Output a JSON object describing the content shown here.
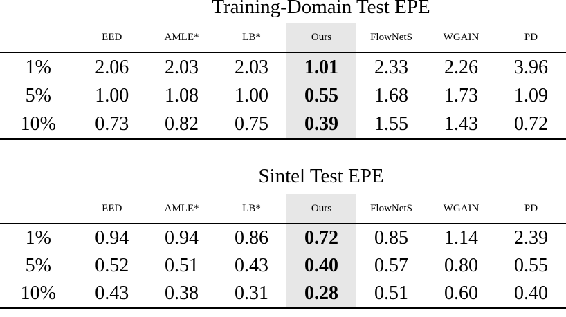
{
  "page": {
    "background": "#ffffff",
    "text_color": "#000000",
    "highlight_color": "#e7e7e7",
    "rule_color": "#000000"
  },
  "tables": [
    {
      "title": "Training-Domain Test EPE",
      "columns": [
        "EED",
        "AMLE*",
        "LB*",
        "Ours",
        "FlowNetS",
        "WGAIN",
        "PD"
      ],
      "highlighted_column": "Ours",
      "highlighted_column_index": 3,
      "row_label_unit": "%",
      "rows": [
        {
          "label": "1%",
          "values": [
            "2.06",
            "2.03",
            "2.03",
            "1.01",
            "2.33",
            "2.26",
            "3.96"
          ]
        },
        {
          "label": "5%",
          "values": [
            "1.00",
            "1.08",
            "1.00",
            "0.55",
            "1.68",
            "1.73",
            "1.09"
          ]
        },
        {
          "label": "10%",
          "values": [
            "0.73",
            "0.82",
            "0.75",
            "0.39",
            "1.55",
            "1.43",
            "0.72"
          ]
        }
      ]
    },
    {
      "title": "Sintel Test EPE",
      "columns": [
        "EED",
        "AMLE*",
        "LB*",
        "Ours",
        "FlowNetS",
        "WGAIN",
        "PD"
      ],
      "highlighted_column": "Ours",
      "highlighted_column_index": 3,
      "row_label_unit": "%",
      "rows": [
        {
          "label": "1%",
          "values": [
            "0.94",
            "0.94",
            "0.86",
            "0.72",
            "0.85",
            "1.14",
            "2.39"
          ]
        },
        {
          "label": "5%",
          "values": [
            "0.52",
            "0.51",
            "0.43",
            "0.40",
            "0.57",
            "0.80",
            "0.55"
          ]
        },
        {
          "label": "10%",
          "values": [
            "0.43",
            "0.38",
            "0.31",
            "0.28",
            "0.51",
            "0.60",
            "0.40"
          ]
        }
      ]
    }
  ]
}
